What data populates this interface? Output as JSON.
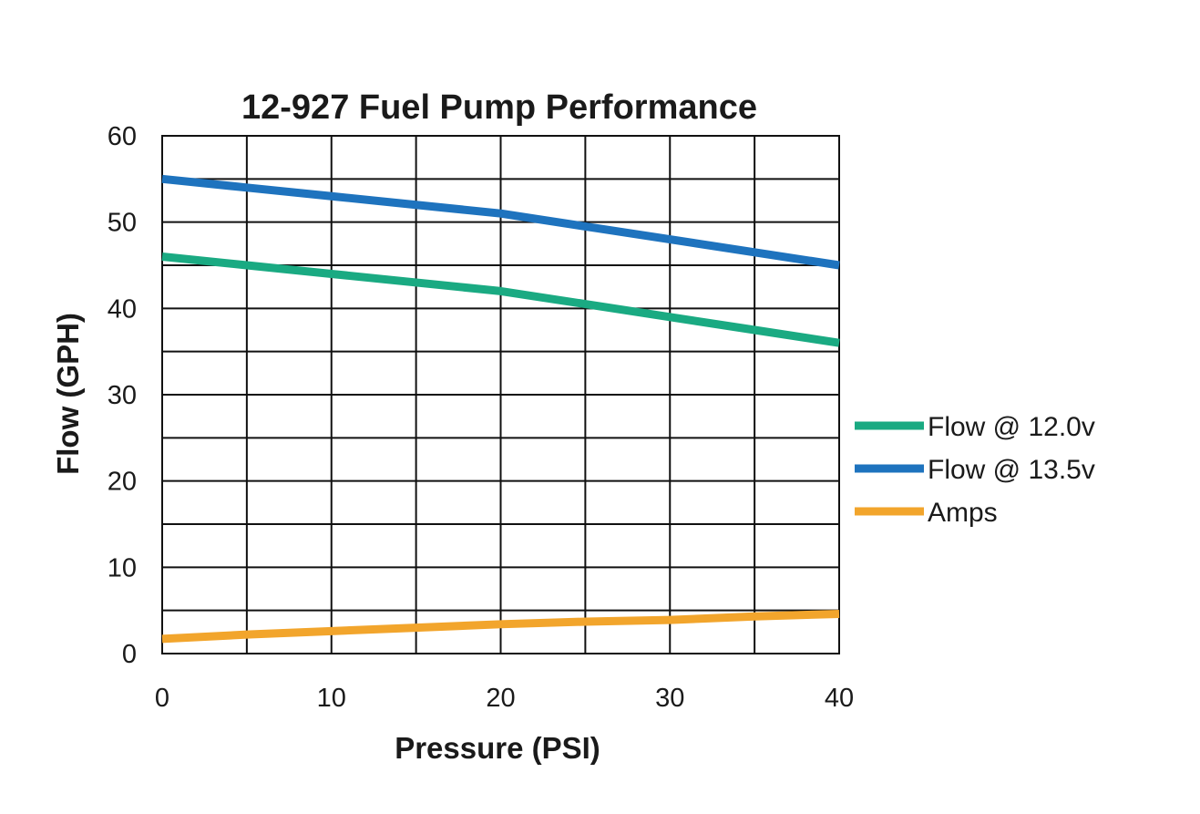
{
  "chart_data": {
    "type": "line",
    "title": "12-927 Fuel Pump Performance",
    "xlabel": "Pressure (PSI)",
    "ylabel": "Flow (GPH)",
    "xlim": [
      0,
      40
    ],
    "ylim": [
      0,
      60
    ],
    "x_ticks": [
      0,
      10,
      20,
      30,
      40
    ],
    "y_ticks": [
      0,
      10,
      20,
      30,
      40,
      50,
      60
    ],
    "x_ticks_labels": [
      "0",
      "10",
      "20",
      "30",
      "40"
    ],
    "y_ticks_labels": [
      "0",
      "10",
      "20",
      "30",
      "40",
      "50",
      "60"
    ],
    "grid": true,
    "legend_position": "right",
    "series": [
      {
        "name": "Flow @ 12.0v",
        "color": "#1aaa82",
        "x": [
          0,
          5,
          10,
          15,
          20,
          25,
          30,
          35,
          40
        ],
        "y": [
          46.0,
          45.0,
          44.0,
          43.0,
          42.0,
          40.5,
          39.0,
          37.5,
          36.0
        ]
      },
      {
        "name": "Flow @ 13.5v",
        "color": "#1e73be",
        "x": [
          0,
          5,
          10,
          15,
          20,
          25,
          30,
          35,
          40
        ],
        "y": [
          55.0,
          54.0,
          53.0,
          52.0,
          51.0,
          49.5,
          48.0,
          46.5,
          45.0
        ]
      },
      {
        "name": "Amps",
        "color": "#f2a52c",
        "x": [
          0,
          5,
          10,
          15,
          20,
          25,
          30,
          35,
          40
        ],
        "y": [
          1.7,
          2.2,
          2.6,
          3.0,
          3.4,
          3.7,
          3.9,
          4.3,
          4.6
        ]
      }
    ]
  }
}
